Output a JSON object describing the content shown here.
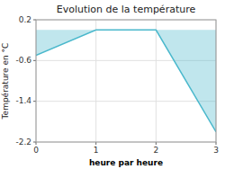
{
  "chart_data": {
    "type": "area",
    "title": "Evolution de la température",
    "xlabel": "heure par heure",
    "ylabel": "Température en °C",
    "x": [
      0,
      1,
      2,
      3
    ],
    "values": [
      -0.5,
      0.0,
      0.0,
      -2.0
    ],
    "color": "#4ab8cc",
    "xlim": [
      0,
      3
    ],
    "ylim": [
      -2.2,
      0.2
    ],
    "xticks": [
      0,
      1,
      2,
      3
    ],
    "yticks": [
      -2.2,
      -1.4,
      -0.6,
      0.2
    ],
    "grid": true
  }
}
